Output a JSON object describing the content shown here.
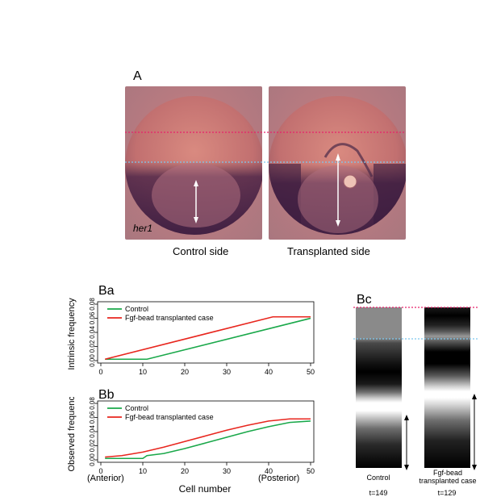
{
  "panelA": {
    "label": "A",
    "gene_label": "her1",
    "left_caption": "Control side",
    "right_caption": "Transplanted side"
  },
  "panelBa": {
    "label": "Ba",
    "chart_data": {
      "type": "line",
      "title": "",
      "xlabel": "",
      "ylabel": "Intrinsic frequency",
      "xlim": [
        0,
        50
      ],
      "ylim": [
        0,
        0.08
      ],
      "xticks": [
        0,
        10,
        20,
        30,
        40,
        50
      ],
      "yticks": [
        "0.00",
        "0.02",
        "0.04",
        "0.06",
        "0.08"
      ],
      "legend_position": "top-left",
      "series": [
        {
          "name": "Control",
          "color": "#1aa84a",
          "x": [
            1,
            11,
            50
          ],
          "y": [
            0.002,
            0.002,
            0.06
          ]
        },
        {
          "name": "Fgf-bead transplanted case",
          "color": "#e8261e",
          "x": [
            1,
            41,
            50
          ],
          "y": [
            0.002,
            0.062,
            0.062
          ]
        }
      ]
    }
  },
  "panelBb": {
    "label": "Bb",
    "chart_data": {
      "type": "line",
      "title": "",
      "xlabel": "Cell number",
      "ylabel": "Observed frequency",
      "xlim": [
        0,
        50
      ],
      "ylim": [
        0,
        0.08
      ],
      "xticks": [
        0,
        10,
        20,
        30,
        40,
        50
      ],
      "yticks": [
        "0.00",
        "0.02",
        "0.04",
        "0.06",
        "0.08"
      ],
      "legend_position": "top-left",
      "annotations": {
        "anterior": "(Anterior)",
        "posterior": "(Posterior)"
      },
      "series": [
        {
          "name": "Control",
          "color": "#1aa84a",
          "x": [
            1,
            5,
            10,
            11,
            15,
            20,
            25,
            30,
            35,
            40,
            45,
            50
          ],
          "y": [
            0.002,
            0.002,
            0.002,
            0.006,
            0.009,
            0.016,
            0.024,
            0.032,
            0.04,
            0.047,
            0.053,
            0.055
          ]
        },
        {
          "name": "Fgf-bead transplanted case",
          "color": "#e8261e",
          "x": [
            1,
            5,
            10,
            15,
            20,
            25,
            30,
            35,
            40,
            45,
            50
          ],
          "y": [
            0.004,
            0.006,
            0.011,
            0.018,
            0.026,
            0.034,
            0.042,
            0.049,
            0.055,
            0.058,
            0.058
          ]
        }
      ]
    }
  },
  "panelBc": {
    "label": "Bc",
    "left_caption": "Control",
    "right_caption": "Fgf-bead transplanted case",
    "left_time": "t=149",
    "right_time": "t=129"
  }
}
